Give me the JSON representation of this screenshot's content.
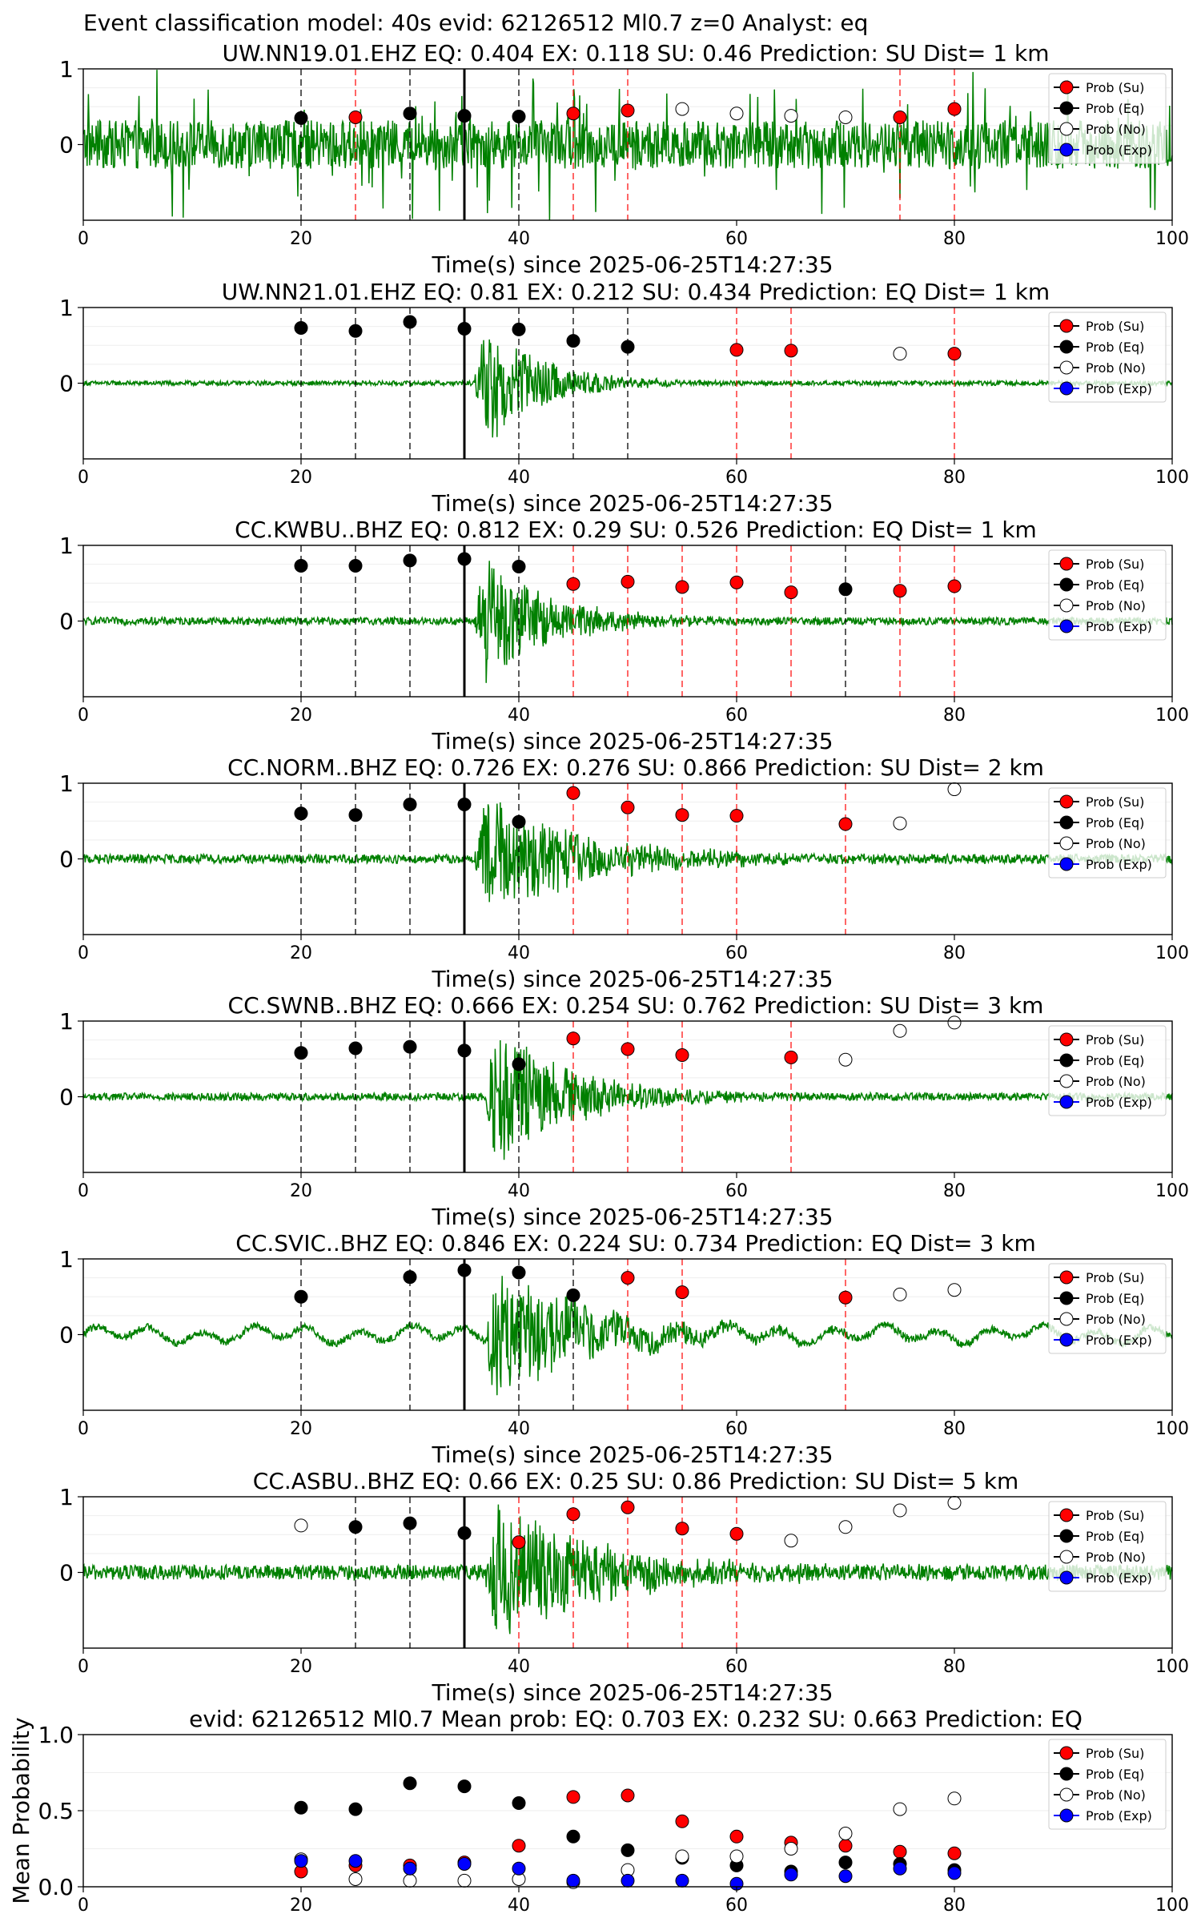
{
  "figure_title": "Event classification model: 40s evid: 62126512 Ml0.7 z=0 Analyst: eq",
  "legend": {
    "items": [
      {
        "label": "Prob (Su)",
        "color": "#ff0000"
      },
      {
        "label": "Prob (Eq)",
        "color": "#000000"
      },
      {
        "label": "Prob (No)",
        "color": "#ffffff"
      },
      {
        "label": "Prob (Exp)",
        "color": "#0000ff"
      }
    ],
    "placement": "upper right"
  },
  "colors": {
    "waveform": "#008000",
    "su": "#ff0000",
    "eq": "#000000",
    "no": "#ffffff",
    "exp": "#0000ff",
    "origin_line": "#000000",
    "eq_line": "#000000",
    "su_line": "#ff0000"
  },
  "xlabel": "Time(s) since 2025-06-25T14:27:35",
  "chart_data": [
    {
      "type": "scatter",
      "title": "UW.NN19.01.EHZ   EQ: 0.404  EX: 0.118  SU: 0.46   Prediction: SU    Dist= 1 km",
      "xlim": [
        0,
        100
      ],
      "ylim": [
        -1,
        1
      ],
      "xticks": [
        "0",
        "20",
        "40",
        "60",
        "80",
        "100"
      ],
      "yticks": [
        "1",
        "0"
      ],
      "waveform": {
        "kind": "noisy",
        "noise": 0.32,
        "onset": 999,
        "amp": 0,
        "spikes": true
      },
      "origin_time": 35,
      "points": [
        {
          "x": 20,
          "y": 0.35,
          "cls": "eq"
        },
        {
          "x": 25,
          "y": 0.36,
          "cls": "su"
        },
        {
          "x": 30,
          "y": 0.41,
          "cls": "eq"
        },
        {
          "x": 35,
          "y": 0.38,
          "cls": "eq"
        },
        {
          "x": 40,
          "y": 0.37,
          "cls": "eq"
        },
        {
          "x": 45,
          "y": 0.41,
          "cls": "su"
        },
        {
          "x": 50,
          "y": 0.45,
          "cls": "su"
        },
        {
          "x": 55,
          "y": 0.47,
          "cls": "no"
        },
        {
          "x": 60,
          "y": 0.41,
          "cls": "no"
        },
        {
          "x": 65,
          "y": 0.38,
          "cls": "no"
        },
        {
          "x": 70,
          "y": 0.36,
          "cls": "no"
        },
        {
          "x": 75,
          "y": 0.36,
          "cls": "su"
        },
        {
          "x": 80,
          "y": 0.47,
          "cls": "su"
        }
      ],
      "vlines": [
        {
          "x": 20,
          "cls": "eq"
        },
        {
          "x": 25,
          "cls": "su"
        },
        {
          "x": 30,
          "cls": "eq"
        },
        {
          "x": 40,
          "cls": "eq"
        },
        {
          "x": 45,
          "cls": "su"
        },
        {
          "x": 50,
          "cls": "su"
        },
        {
          "x": 75,
          "cls": "su"
        },
        {
          "x": 80,
          "cls": "su"
        }
      ]
    },
    {
      "type": "scatter",
      "title": "UW.NN21.01.EHZ   EQ: 0.81  EX: 0.212  SU: 0.434   Prediction: EQ    Dist= 1 km",
      "xlim": [
        0,
        100
      ],
      "ylim": [
        -1,
        1
      ],
      "xticks": [
        "0",
        "20",
        "40",
        "60",
        "80",
        "100"
      ],
      "yticks": [
        "1",
        "0"
      ],
      "waveform": {
        "kind": "event",
        "noise": 0.03,
        "onset": 36,
        "amp": 0.95,
        "decay": 5
      },
      "origin_time": 35,
      "points": [
        {
          "x": 20,
          "y": 0.73,
          "cls": "eq"
        },
        {
          "x": 25,
          "y": 0.69,
          "cls": "eq"
        },
        {
          "x": 30,
          "y": 0.81,
          "cls": "eq"
        },
        {
          "x": 35,
          "y": 0.72,
          "cls": "eq"
        },
        {
          "x": 40,
          "y": 0.71,
          "cls": "eq"
        },
        {
          "x": 45,
          "y": 0.56,
          "cls": "eq"
        },
        {
          "x": 50,
          "y": 0.48,
          "cls": "eq"
        },
        {
          "x": 60,
          "y": 0.44,
          "cls": "su"
        },
        {
          "x": 65,
          "y": 0.43,
          "cls": "su"
        },
        {
          "x": 75,
          "y": 0.39,
          "cls": "no"
        },
        {
          "x": 80,
          "y": 0.39,
          "cls": "su"
        }
      ],
      "vlines": [
        {
          "x": 20,
          "cls": "eq"
        },
        {
          "x": 25,
          "cls": "eq"
        },
        {
          "x": 30,
          "cls": "eq"
        },
        {
          "x": 40,
          "cls": "eq"
        },
        {
          "x": 45,
          "cls": "eq"
        },
        {
          "x": 50,
          "cls": "eq"
        },
        {
          "x": 60,
          "cls": "su"
        },
        {
          "x": 65,
          "cls": "su"
        },
        {
          "x": 80,
          "cls": "su"
        }
      ]
    },
    {
      "type": "scatter",
      "title": "CC.KWBU..BHZ   EQ: 0.812  EX: 0.29  SU: 0.526   Prediction: EQ    Dist= 1 km",
      "xlim": [
        0,
        100
      ],
      "ylim": [
        -1,
        1
      ],
      "xticks": [
        "0",
        "20",
        "40",
        "60",
        "80",
        "100"
      ],
      "yticks": [
        "1",
        "0"
      ],
      "waveform": {
        "kind": "event",
        "noise": 0.05,
        "onset": 36,
        "amp": 0.9,
        "decay": 6
      },
      "origin_time": 35,
      "points": [
        {
          "x": 20,
          "y": 0.73,
          "cls": "eq"
        },
        {
          "x": 25,
          "y": 0.73,
          "cls": "eq"
        },
        {
          "x": 30,
          "y": 0.8,
          "cls": "eq"
        },
        {
          "x": 35,
          "y": 0.82,
          "cls": "eq"
        },
        {
          "x": 40,
          "y": 0.72,
          "cls": "eq"
        },
        {
          "x": 45,
          "y": 0.49,
          "cls": "su"
        },
        {
          "x": 50,
          "y": 0.52,
          "cls": "su"
        },
        {
          "x": 55,
          "y": 0.45,
          "cls": "su"
        },
        {
          "x": 60,
          "y": 0.51,
          "cls": "su"
        },
        {
          "x": 65,
          "y": 0.38,
          "cls": "su"
        },
        {
          "x": 70,
          "y": 0.42,
          "cls": "eq"
        },
        {
          "x": 75,
          "y": 0.4,
          "cls": "su"
        },
        {
          "x": 80,
          "y": 0.46,
          "cls": "su"
        }
      ],
      "vlines": [
        {
          "x": 20,
          "cls": "eq"
        },
        {
          "x": 25,
          "cls": "eq"
        },
        {
          "x": 30,
          "cls": "eq"
        },
        {
          "x": 40,
          "cls": "eq"
        },
        {
          "x": 45,
          "cls": "su"
        },
        {
          "x": 50,
          "cls": "su"
        },
        {
          "x": 55,
          "cls": "su"
        },
        {
          "x": 60,
          "cls": "su"
        },
        {
          "x": 65,
          "cls": "su"
        },
        {
          "x": 70,
          "cls": "eq"
        },
        {
          "x": 75,
          "cls": "su"
        },
        {
          "x": 80,
          "cls": "su"
        }
      ]
    },
    {
      "type": "scatter",
      "title": "CC.NORM..BHZ   EQ: 0.726  EX: 0.276  SU: 0.866   Prediction: SU    Dist= 2 km",
      "xlim": [
        0,
        100
      ],
      "ylim": [
        -1,
        1
      ],
      "xticks": [
        "0",
        "20",
        "40",
        "60",
        "80",
        "100"
      ],
      "yticks": [
        "1",
        "0"
      ],
      "waveform": {
        "kind": "event",
        "noise": 0.06,
        "onset": 36,
        "amp": 0.85,
        "decay": 9
      },
      "origin_time": 35,
      "points": [
        {
          "x": 20,
          "y": 0.6,
          "cls": "eq"
        },
        {
          "x": 25,
          "y": 0.58,
          "cls": "eq"
        },
        {
          "x": 30,
          "y": 0.72,
          "cls": "eq"
        },
        {
          "x": 35,
          "y": 0.72,
          "cls": "eq"
        },
        {
          "x": 40,
          "y": 0.49,
          "cls": "eq"
        },
        {
          "x": 45,
          "y": 0.87,
          "cls": "su"
        },
        {
          "x": 50,
          "y": 0.68,
          "cls": "su"
        },
        {
          "x": 55,
          "y": 0.58,
          "cls": "su"
        },
        {
          "x": 60,
          "y": 0.57,
          "cls": "su"
        },
        {
          "x": 70,
          "y": 0.46,
          "cls": "su"
        },
        {
          "x": 75,
          "y": 0.47,
          "cls": "no"
        },
        {
          "x": 80,
          "y": 0.92,
          "cls": "no"
        }
      ],
      "vlines": [
        {
          "x": 20,
          "cls": "eq"
        },
        {
          "x": 25,
          "cls": "eq"
        },
        {
          "x": 30,
          "cls": "eq"
        },
        {
          "x": 40,
          "cls": "eq"
        },
        {
          "x": 45,
          "cls": "su"
        },
        {
          "x": 50,
          "cls": "su"
        },
        {
          "x": 55,
          "cls": "su"
        },
        {
          "x": 60,
          "cls": "su"
        },
        {
          "x": 70,
          "cls": "su"
        }
      ]
    },
    {
      "type": "scatter",
      "title": "CC.SWNB..BHZ   EQ: 0.666  EX: 0.254  SU: 0.762   Prediction: SU    Dist= 3 km",
      "xlim": [
        0,
        100
      ],
      "ylim": [
        -1,
        1
      ],
      "xticks": [
        "0",
        "20",
        "40",
        "60",
        "80",
        "100"
      ],
      "yticks": [
        "1",
        "0"
      ],
      "waveform": {
        "kind": "event",
        "noise": 0.05,
        "onset": 37,
        "amp": 1.0,
        "decay": 7
      },
      "origin_time": 35,
      "points": [
        {
          "x": 20,
          "y": 0.58,
          "cls": "eq"
        },
        {
          "x": 25,
          "y": 0.64,
          "cls": "eq"
        },
        {
          "x": 30,
          "y": 0.66,
          "cls": "eq"
        },
        {
          "x": 35,
          "y": 0.61,
          "cls": "eq"
        },
        {
          "x": 40,
          "y": 0.43,
          "cls": "eq"
        },
        {
          "x": 45,
          "y": 0.77,
          "cls": "su"
        },
        {
          "x": 50,
          "y": 0.63,
          "cls": "su"
        },
        {
          "x": 55,
          "y": 0.55,
          "cls": "su"
        },
        {
          "x": 65,
          "y": 0.52,
          "cls": "su"
        },
        {
          "x": 70,
          "y": 0.49,
          "cls": "no"
        },
        {
          "x": 75,
          "y": 0.87,
          "cls": "no"
        },
        {
          "x": 80,
          "y": 0.98,
          "cls": "no"
        }
      ],
      "vlines": [
        {
          "x": 20,
          "cls": "eq"
        },
        {
          "x": 25,
          "cls": "eq"
        },
        {
          "x": 30,
          "cls": "eq"
        },
        {
          "x": 40,
          "cls": "eq"
        },
        {
          "x": 45,
          "cls": "su"
        },
        {
          "x": 50,
          "cls": "su"
        },
        {
          "x": 55,
          "cls": "su"
        },
        {
          "x": 65,
          "cls": "su"
        }
      ]
    },
    {
      "type": "scatter",
      "title": "CC.SVIC..BHZ   EQ: 0.846  EX: 0.224  SU: 0.734   Prediction: EQ    Dist= 3 km",
      "xlim": [
        0,
        100
      ],
      "ylim": [
        -1,
        1
      ],
      "xticks": [
        "0",
        "20",
        "40",
        "60",
        "80",
        "100"
      ],
      "yticks": [
        "1",
        "0"
      ],
      "waveform": {
        "kind": "event",
        "noise": 0.05,
        "onset": 37,
        "amp": 1.0,
        "decay": 8,
        "wobble": 0.08
      },
      "origin_time": 35,
      "points": [
        {
          "x": 20,
          "y": 0.5,
          "cls": "eq"
        },
        {
          "x": 30,
          "y": 0.76,
          "cls": "eq"
        },
        {
          "x": 35,
          "y": 0.85,
          "cls": "eq"
        },
        {
          "x": 40,
          "y": 0.82,
          "cls": "eq"
        },
        {
          "x": 45,
          "y": 0.52,
          "cls": "eq"
        },
        {
          "x": 50,
          "y": 0.75,
          "cls": "su"
        },
        {
          "x": 55,
          "y": 0.56,
          "cls": "su"
        },
        {
          "x": 70,
          "y": 0.49,
          "cls": "su"
        },
        {
          "x": 75,
          "y": 0.53,
          "cls": "no"
        },
        {
          "x": 80,
          "y": 0.59,
          "cls": "no"
        }
      ],
      "vlines": [
        {
          "x": 20,
          "cls": "eq"
        },
        {
          "x": 30,
          "cls": "eq"
        },
        {
          "x": 40,
          "cls": "eq"
        },
        {
          "x": 45,
          "cls": "eq"
        },
        {
          "x": 50,
          "cls": "su"
        },
        {
          "x": 55,
          "cls": "su"
        },
        {
          "x": 70,
          "cls": "su"
        }
      ]
    },
    {
      "type": "scatter",
      "title": "CC.ASBU..BHZ   EQ: 0.66  EX: 0.25  SU: 0.86   Prediction: SU    Dist= 5 km",
      "xlim": [
        0,
        100
      ],
      "ylim": [
        -1,
        1
      ],
      "xticks": [
        "0",
        "20",
        "40",
        "60",
        "80",
        "100"
      ],
      "yticks": [
        "1",
        "0"
      ],
      "waveform": {
        "kind": "event",
        "noise": 0.1,
        "onset": 37,
        "amp": 0.85,
        "decay": 10
      },
      "origin_time": 35,
      "points": [
        {
          "x": 20,
          "y": 0.62,
          "cls": "no"
        },
        {
          "x": 25,
          "y": 0.6,
          "cls": "eq"
        },
        {
          "x": 30,
          "y": 0.65,
          "cls": "eq"
        },
        {
          "x": 35,
          "y": 0.52,
          "cls": "eq"
        },
        {
          "x": 40,
          "y": 0.4,
          "cls": "su"
        },
        {
          "x": 45,
          "y": 0.77,
          "cls": "su"
        },
        {
          "x": 50,
          "y": 0.86,
          "cls": "su"
        },
        {
          "x": 55,
          "y": 0.58,
          "cls": "su"
        },
        {
          "x": 60,
          "y": 0.51,
          "cls": "su"
        },
        {
          "x": 65,
          "y": 0.42,
          "cls": "no"
        },
        {
          "x": 70,
          "y": 0.6,
          "cls": "no"
        },
        {
          "x": 75,
          "y": 0.82,
          "cls": "no"
        },
        {
          "x": 80,
          "y": 0.92,
          "cls": "no"
        }
      ],
      "vlines": [
        {
          "x": 25,
          "cls": "eq"
        },
        {
          "x": 30,
          "cls": "eq"
        },
        {
          "x": 40,
          "cls": "su"
        },
        {
          "x": 45,
          "cls": "su"
        },
        {
          "x": 50,
          "cls": "su"
        },
        {
          "x": 55,
          "cls": "su"
        },
        {
          "x": 60,
          "cls": "su"
        }
      ]
    },
    {
      "type": "scatter",
      "title": "evid: 62126512  Ml0.7   Mean prob:   EQ: 0.703  EX: 0.232  SU: 0.663   Prediction: EQ",
      "ylabel": "Mean Probability",
      "xlim": [
        0,
        100
      ],
      "ylim": [
        0,
        1
      ],
      "xticks": [
        "0",
        "20",
        "40",
        "60",
        "80",
        "100"
      ],
      "yticks": [
        "1.0",
        "0.5",
        "0.0"
      ],
      "x": [
        20,
        25,
        30,
        35,
        40,
        45,
        50,
        55,
        60,
        65,
        70,
        75,
        80
      ],
      "series": [
        {
          "name": "Prob (Su)",
          "cls": "su",
          "values": [
            0.1,
            0.14,
            0.14,
            0.16,
            0.27,
            0.59,
            0.6,
            0.43,
            0.33,
            0.29,
            0.27,
            0.23,
            0.22
          ]
        },
        {
          "name": "Prob (Eq)",
          "cls": "eq",
          "values": [
            0.52,
            0.51,
            0.68,
            0.66,
            0.55,
            0.33,
            0.24,
            0.19,
            0.14,
            0.1,
            0.16,
            0.15,
            0.11
          ]
        },
        {
          "name": "Prob (No)",
          "cls": "no",
          "values": [
            0.18,
            0.05,
            0.04,
            0.04,
            0.05,
            0.03,
            0.11,
            0.2,
            0.2,
            0.25,
            0.35,
            0.51,
            0.58
          ]
        },
        {
          "name": "Prob (Exp)",
          "cls": "exp",
          "values": [
            0.17,
            0.17,
            0.12,
            0.15,
            0.12,
            0.04,
            0.04,
            0.04,
            0.02,
            0.08,
            0.07,
            0.12,
            0.09
          ]
        }
      ]
    }
  ]
}
